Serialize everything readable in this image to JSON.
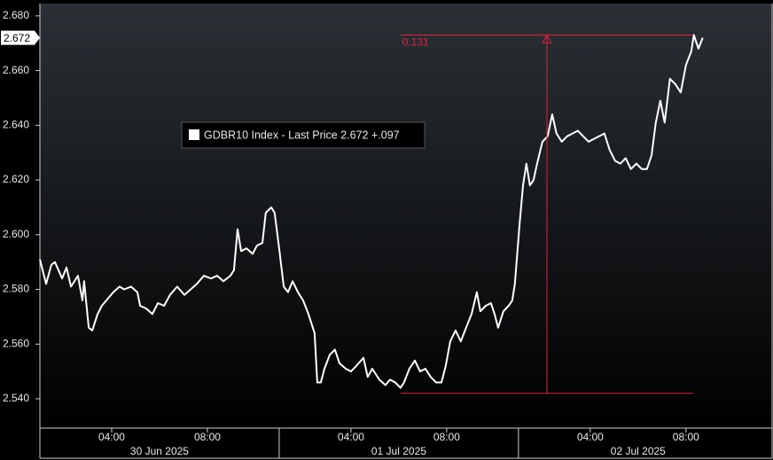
{
  "chart_data": {
    "type": "line",
    "legend": "GDBR10 Index - Last Price 2.672  +.097",
    "last_label": {
      "value": 2.672,
      "label": "2.672"
    },
    "series": [
      {
        "name": "GDBR10 Index",
        "color": "#ffffff",
        "x": [
          0,
          0.26,
          0.48,
          0.63,
          0.93,
          1.11,
          1.3,
          1.59,
          1.78,
          1.85,
          2.04,
          2.19,
          2.41,
          2.59,
          2.78,
          3.07,
          3.33,
          3.52,
          3.81,
          4.07,
          4.19,
          4.44,
          4.7,
          4.93,
          5.19,
          5.44,
          5.74,
          6.04,
          6.3,
          6.56,
          6.85,
          7.15,
          7.41,
          7.67,
          7.96,
          8.11,
          8.26,
          8.41,
          8.63,
          8.89,
          9.07,
          9.3,
          9.44,
          9.67,
          9.81,
          10,
          10.19,
          10.37,
          10.56,
          10.78,
          11,
          11.22,
          11.48,
          11.59,
          11.74,
          11.89,
          12.11,
          12.33,
          12.52,
          12.78,
          13,
          13.22,
          13.52,
          13.7,
          13.89,
          14.19,
          14.44,
          14.63,
          14.85,
          15.07,
          15.22,
          15.44,
          15.67,
          15.89,
          16.11,
          16.33,
          16.56,
          16.78,
          16.96,
          17.15,
          17.37,
          17.59,
          17.81,
          18.04,
          18.26,
          18.41,
          18.63,
          18.85,
          19,
          19.15,
          19.37,
          19.59,
          19.74,
          19.85,
          20.04,
          20.19,
          20.33,
          20.48,
          20.63,
          20.78,
          21,
          21.22,
          21.41,
          21.59,
          21.81,
          22.04,
          22.26,
          22.48,
          22.7,
          22.93,
          23.15,
          23.37,
          23.59,
          23.81,
          24.04,
          24.26,
          24.48,
          24.7,
          24.93,
          25.15,
          25.37,
          25.56,
          25.74,
          25.93,
          26.11,
          26.33,
          26.56,
          26.78,
          27,
          27.22,
          27.33,
          27.52,
          27.7
        ],
        "values": [
          2.591,
          2.582,
          2.589,
          2.59,
          2.584,
          2.588,
          2.581,
          2.585,
          2.576,
          2.583,
          2.566,
          2.565,
          2.571,
          2.574,
          2.576,
          2.579,
          2.581,
          2.58,
          2.581,
          2.579,
          2.574,
          2.573,
          2.571,
          2.575,
          2.574,
          2.578,
          2.581,
          2.578,
          2.58,
          2.582,
          2.585,
          2.584,
          2.585,
          2.583,
          2.585,
          2.587,
          2.602,
          2.594,
          2.595,
          2.593,
          2.596,
          2.597,
          2.608,
          2.61,
          2.608,
          2.595,
          2.581,
          2.579,
          2.583,
          2.579,
          2.576,
          2.571,
          2.564,
          2.546,
          2.546,
          2.551,
          2.556,
          2.558,
          2.553,
          2.551,
          2.55,
          2.552,
          2.555,
          2.548,
          2.551,
          2.547,
          2.545,
          2.547,
          2.546,
          2.544,
          2.546,
          2.551,
          2.554,
          2.55,
          2.551,
          2.548,
          2.546,
          2.546,
          2.552,
          2.561,
          2.565,
          2.561,
          2.566,
          2.571,
          2.579,
          2.572,
          2.574,
          2.575,
          2.571,
          2.566,
          2.572,
          2.574,
          2.576,
          2.582,
          2.603,
          2.618,
          2.626,
          2.618,
          2.62,
          2.626,
          2.634,
          2.636,
          2.644,
          2.637,
          2.634,
          2.636,
          2.637,
          2.638,
          2.636,
          2.634,
          2.635,
          2.636,
          2.637,
          2.631,
          2.627,
          2.626,
          2.628,
          2.624,
          2.626,
          2.624,
          2.624,
          2.629,
          2.641,
          2.649,
          2.641,
          2.657,
          2.655,
          2.652,
          2.662,
          2.667,
          2.673,
          2.668,
          2.672
        ]
      }
    ],
    "annotation": {
      "label": "0.131",
      "x_start": 15.07,
      "x_end": 27.3,
      "x_arrow": 21.19,
      "y_low": 2.542,
      "y_high": 2.673
    },
    "xlim": [
      0,
      30.6
    ],
    "ylim": [
      2.5293,
      2.6845
    ],
    "yticks": [
      {
        "value": 2.54,
        "label": "2.540"
      },
      {
        "value": 2.56,
        "label": "2.560"
      },
      {
        "value": 2.58,
        "label": "2.580"
      },
      {
        "value": 2.6,
        "label": "2.600"
      },
      {
        "value": 2.62,
        "label": "2.620"
      },
      {
        "value": 2.64,
        "label": "2.640"
      },
      {
        "value": 2.66,
        "label": "2.660"
      },
      {
        "value": 2.68,
        "label": "2.680"
      }
    ],
    "xticks": [
      {
        "value": 3,
        "label": "04:00"
      },
      {
        "value": 7,
        "label": "08:00"
      },
      {
        "value": 13,
        "label": "04:00"
      },
      {
        "value": 17,
        "label": "08:00"
      },
      {
        "value": 23,
        "label": "04:00"
      },
      {
        "value": 27,
        "label": "08:00"
      }
    ],
    "day_ticks": [
      {
        "value": 5,
        "label": "30 Jun 2025"
      },
      {
        "value": 15,
        "label": "01 Jul 2025"
      },
      {
        "value": 25,
        "label": "02 Jul 2025"
      }
    ],
    "day_bounds": [
      10,
      20
    ]
  }
}
